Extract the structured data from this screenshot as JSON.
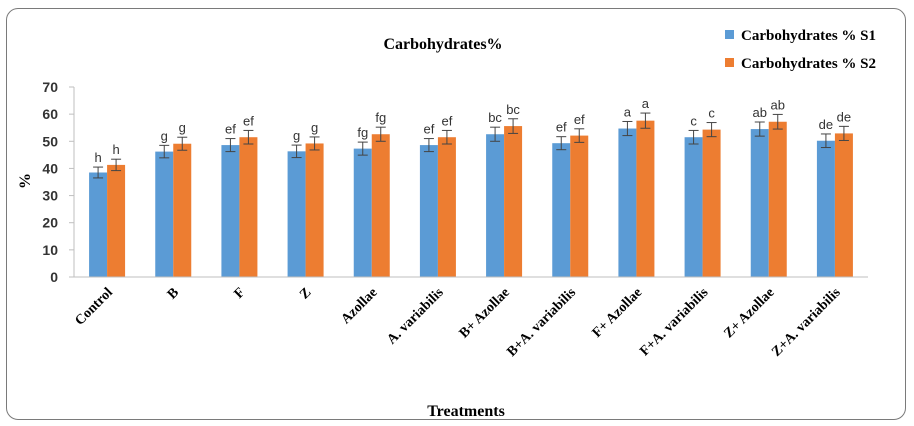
{
  "chart_data": {
    "type": "bar",
    "title": "Carbohydrates%",
    "xlabel": "Treatments",
    "ylabel": "%",
    "ylim": [
      0,
      70
    ],
    "yticks": [
      0,
      10,
      20,
      30,
      40,
      50,
      60,
      70
    ],
    "grid": false,
    "legend_position": "top-right",
    "categories": [
      "Control",
      "B",
      "F",
      "Z",
      "Azollae",
      "A. variabilis",
      "B+ Azollae",
      "B+A. variabilis",
      "F+  Azollae",
      "F+A. variabilis",
      "Z+ Azollae",
      "Z+A. variabilis"
    ],
    "series": [
      {
        "name": "Carbohydrates % S1",
        "color": "#5B9BD5",
        "values": [
          38.5,
          46.2,
          48.6,
          46.3,
          47.3,
          48.6,
          52.6,
          49.3,
          54.7,
          51.5,
          54.5,
          50.2
        ],
        "errors": [
          2.0,
          2.3,
          2.4,
          2.3,
          2.4,
          2.4,
          2.6,
          2.4,
          2.6,
          2.5,
          2.6,
          2.5
        ],
        "labels": [
          "h",
          "g",
          "ef",
          "g",
          "fg",
          "ef",
          "bc",
          "ef",
          "a",
          "c",
          "ab",
          "de"
        ]
      },
      {
        "name": "Carbohydrates % S2",
        "color": "#ED7D31",
        "values": [
          41.3,
          49.1,
          51.5,
          49.2,
          52.6,
          51.5,
          55.6,
          52.1,
          57.6,
          54.3,
          57.2,
          52.9
        ],
        "errors": [
          2.1,
          2.4,
          2.5,
          2.4,
          2.6,
          2.5,
          2.7,
          2.5,
          2.8,
          2.6,
          2.7,
          2.6
        ],
        "labels": [
          "h",
          "g",
          "ef",
          "g",
          "fg",
          "ef",
          "bc",
          "ef",
          "a",
          "c",
          "ab",
          "de"
        ]
      }
    ]
  }
}
